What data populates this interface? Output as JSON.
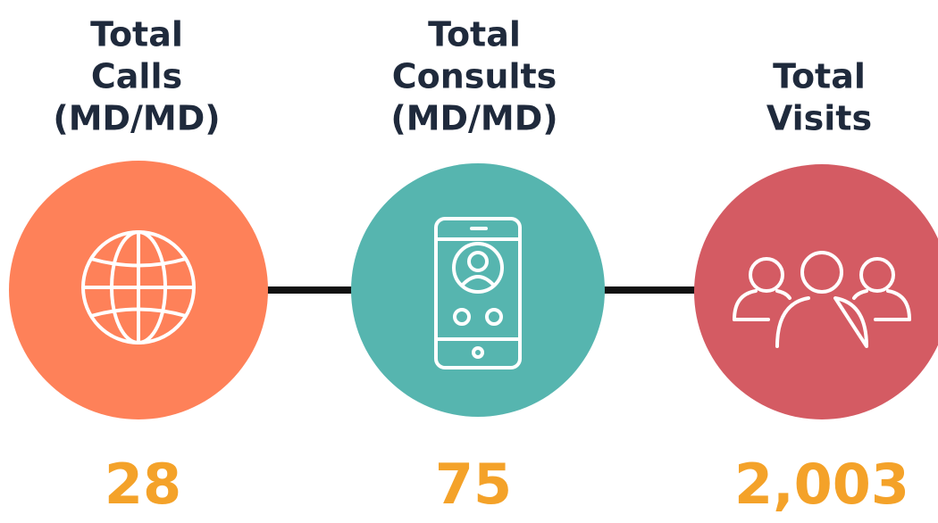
{
  "items": [
    {
      "label": [
        "Total",
        "Calls",
        "(MD/MD)"
      ],
      "value": "28"
    },
    {
      "label": [
        "Total",
        "Consults",
        "(MD/MD)"
      ],
      "value": "75"
    },
    {
      "label": [
        "Total",
        "Visits"
      ],
      "value": "2,003"
    }
  ]
}
